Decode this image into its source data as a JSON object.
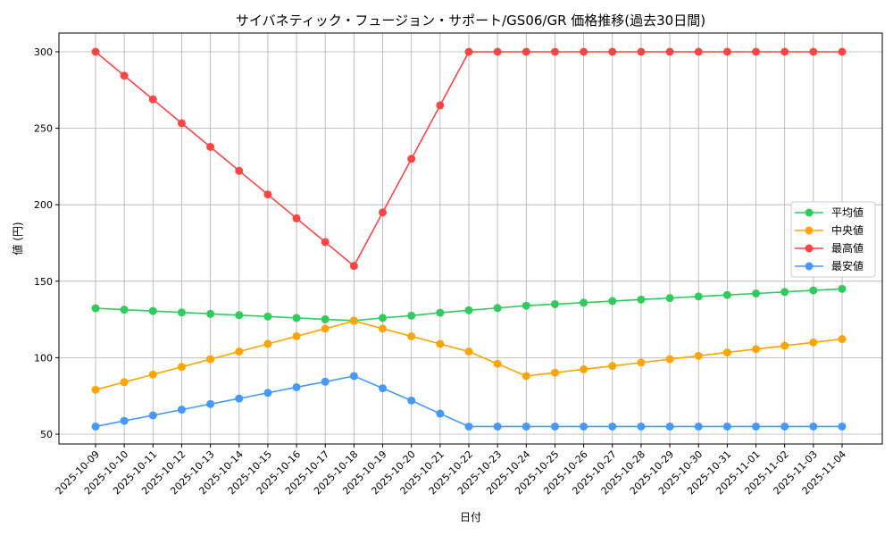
{
  "chart_data": {
    "type": "line",
    "title": "サイバネティック・フュージョン・サポート/GS06/GR 価格推移(過去30日間)",
    "xlabel": "日付",
    "ylabel": "値 (円)",
    "ylim": [
      42,
      311
    ],
    "yticks": [
      50,
      100,
      150,
      200,
      250,
      300
    ],
    "grid": true,
    "legend": "center-right",
    "categories": [
      "2025-10-09",
      "2025-10-10",
      "2025-10-11",
      "2025-10-12",
      "2025-10-13",
      "2025-10-14",
      "2025-10-15",
      "2025-10-16",
      "2025-10-17",
      "2025-10-18",
      "2025-10-19",
      "2025-10-20",
      "2025-10-21",
      "2025-10-22",
      "2025-10-23",
      "2025-10-24",
      "2025-10-25",
      "2025-10-26",
      "2025-10-27",
      "2025-10-28",
      "2025-10-29",
      "2025-10-30",
      "2025-10-31",
      "2025-11-01",
      "2025-11-02",
      "2025-11-03",
      "2025-11-04"
    ],
    "series": [
      {
        "name": "平均値",
        "color": "#2ecc5a",
        "values": [
          132.3,
          131.4,
          130.5,
          129.6,
          128.7,
          127.8,
          126.9,
          126.0,
          125.1,
          124.2,
          126.0,
          127.5,
          129.4,
          131.0,
          132.5,
          134.0,
          135.0,
          136.0,
          137.0,
          138.0,
          139.0,
          140.0,
          141.0,
          142.0,
          143.0,
          144.0,
          145.0
        ]
      },
      {
        "name": "中央値",
        "color": "#ffa500",
        "values": [
          79,
          84,
          89,
          94,
          99,
          104,
          109,
          114,
          119,
          124,
          119,
          114,
          109,
          104,
          96,
          88,
          90.2,
          92.4,
          94.6,
          96.8,
          99,
          101.2,
          103.4,
          105.6,
          107.8,
          110,
          112.2
        ]
      },
      {
        "name": "最高値",
        "color": "#ff4444",
        "values": [
          300,
          284.4,
          268.9,
          253.3,
          237.8,
          222.2,
          206.7,
          191.1,
          175.6,
          160,
          195,
          230,
          265,
          300,
          300,
          300,
          300,
          300,
          300,
          300,
          300,
          300,
          300,
          300,
          300,
          300,
          300
        ]
      },
      {
        "name": "最安値",
        "color": "#4499ff",
        "values": [
          55,
          58.7,
          62.3,
          66,
          69.7,
          73.3,
          77,
          80.7,
          84.3,
          88,
          80,
          72,
          63.4,
          55,
          55,
          55,
          55,
          55,
          55,
          55,
          55,
          55,
          55,
          55,
          55,
          55,
          55
        ]
      }
    ]
  }
}
